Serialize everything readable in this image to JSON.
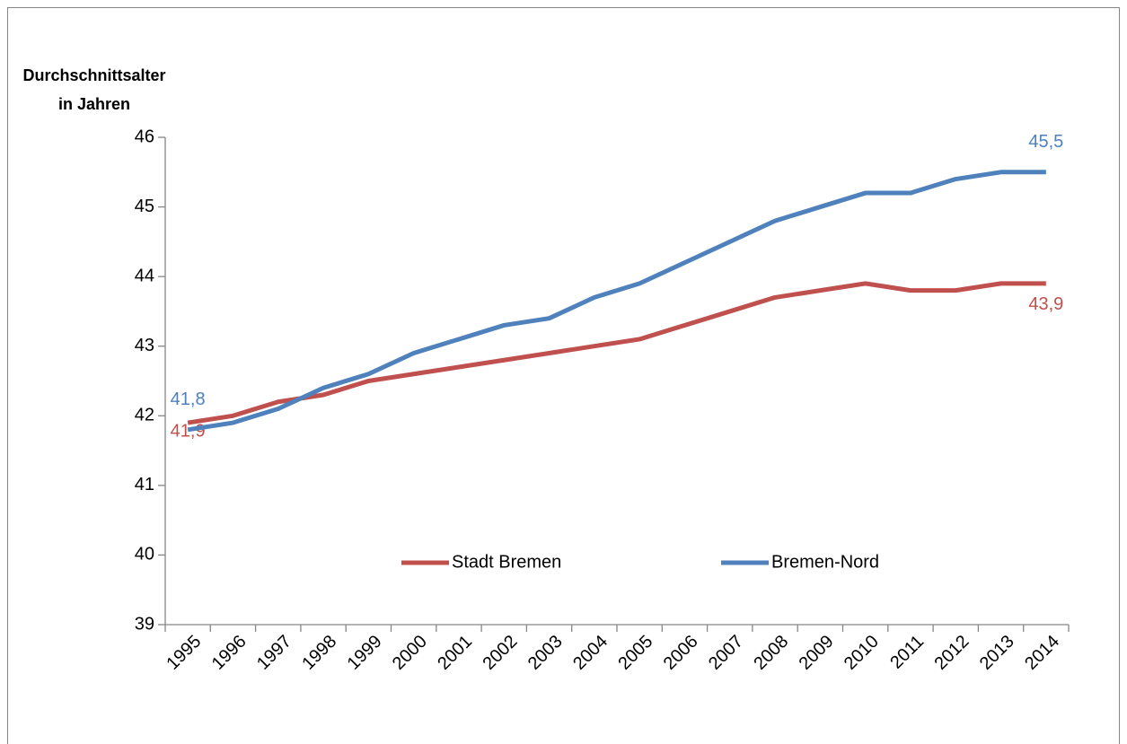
{
  "chart_data": {
    "type": "line",
    "y_label": "Durchschnittsalter in Jahren",
    "categories": [
      "1995",
      "1996",
      "1997",
      "1998",
      "1999",
      "2000",
      "2001",
      "2002",
      "2003",
      "2004",
      "2005",
      "2006",
      "2007",
      "2008",
      "2009",
      "2010",
      "2011",
      "2012",
      "2013",
      "2014"
    ],
    "series": [
      {
        "name": "Stadt Bremen",
        "color": "#c0504d",
        "values": [
          41.9,
          42.0,
          42.2,
          42.3,
          42.5,
          42.6,
          42.7,
          42.8,
          42.9,
          43.0,
          43.1,
          43.3,
          43.5,
          43.7,
          43.8,
          43.9,
          43.8,
          43.8,
          43.9,
          43.9
        ],
        "value_labels": [
          "41,9",
          null,
          null,
          null,
          null,
          null,
          null,
          null,
          null,
          null,
          null,
          null,
          null,
          null,
          null,
          null,
          null,
          null,
          null,
          "43,9"
        ]
      },
      {
        "name": "Bremen-Nord",
        "color": "#4f81bd",
        "values": [
          41.8,
          41.9,
          42.1,
          42.4,
          42.6,
          42.9,
          43.1,
          43.3,
          43.4,
          43.7,
          43.9,
          44.2,
          44.5,
          44.8,
          45.0,
          45.2,
          45.2,
          45.4,
          45.5,
          45.5
        ],
        "value_labels": [
          "41,8",
          null,
          null,
          null,
          null,
          null,
          null,
          null,
          null,
          null,
          null,
          null,
          null,
          null,
          null,
          null,
          null,
          null,
          null,
          "45,5"
        ]
      }
    ],
    "ylim": [
      39,
      46
    ],
    "yticks": [
      39,
      40,
      41,
      42,
      43,
      44,
      45,
      46
    ],
    "grid": false,
    "legend": "lower center"
  }
}
